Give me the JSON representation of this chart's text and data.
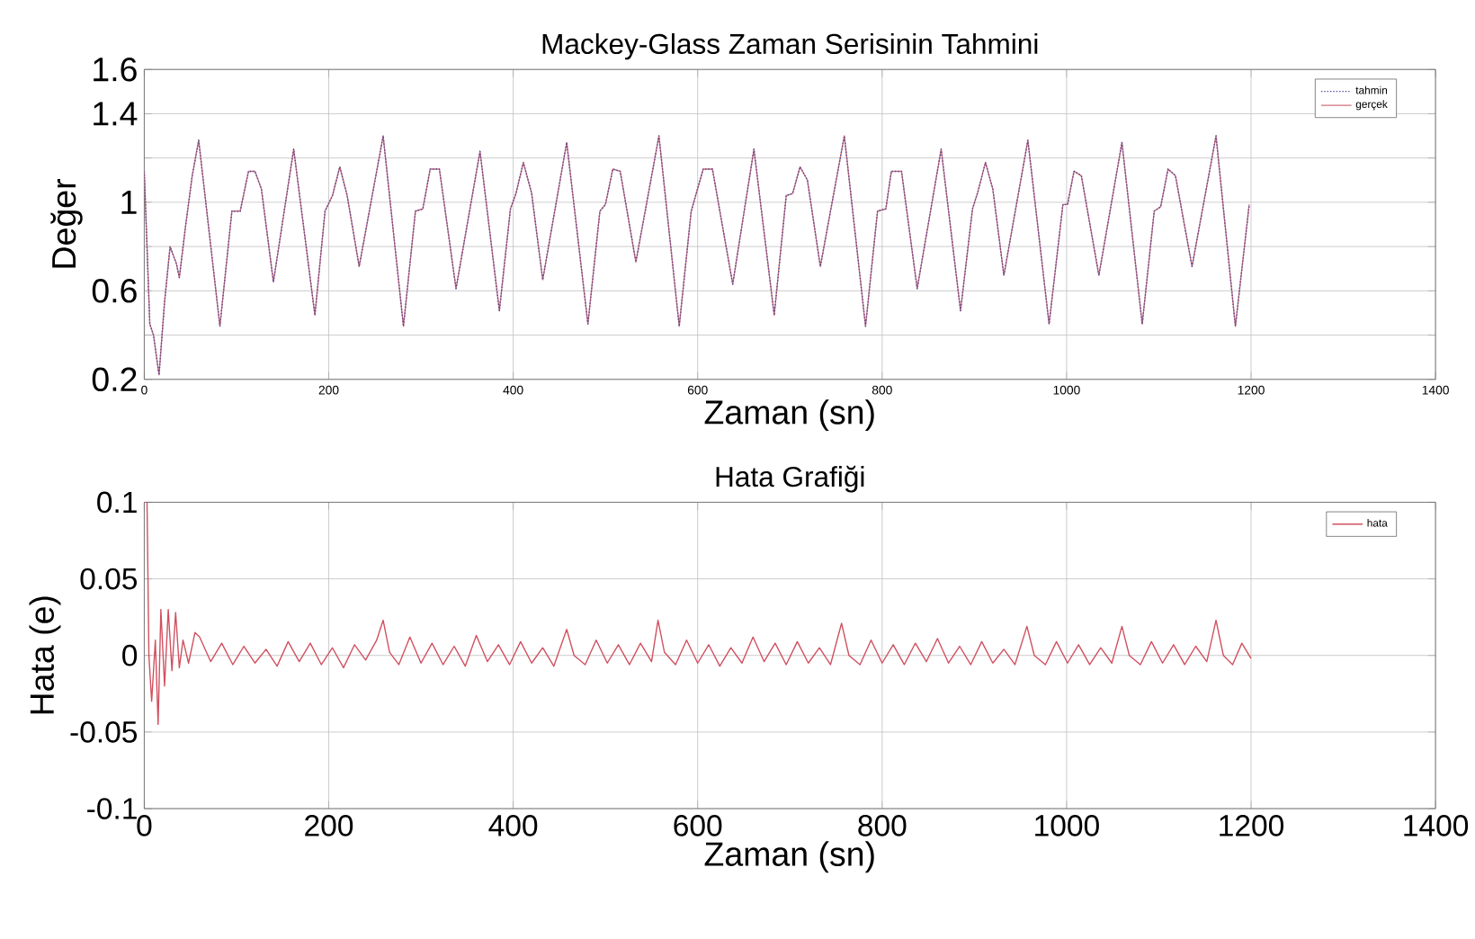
{
  "chart_data": [
    {
      "type": "line",
      "title": "Mackey-Glass Zaman Serisinin Tahmini",
      "xlabel": "Zaman (sn)",
      "ylabel": "Değer",
      "xlim": [
        0,
        1400
      ],
      "xticks": [
        0,
        200,
        400,
        600,
        800,
        1000,
        1200,
        1400
      ],
      "ylim": [
        0.2,
        1.6
      ],
      "yticks": [
        0.2,
        {
          "value": 0.4,
          "label": null
        },
        0.6,
        {
          "value": 0.8,
          "label": null
        },
        1,
        {
          "value": 1.2,
          "label": null
        },
        1.4,
        1.6
      ],
      "grid": true,
      "legend": "top right",
      "series": [
        {
          "name": "tahmin",
          "color": "#4a4a9a",
          "line_style": "dotted",
          "x": [
            0,
            6,
            10,
            16,
            22,
            28,
            35,
            38,
            45,
            52,
            59,
            82,
            95,
            104,
            113,
            120,
            127,
            140,
            162,
            185,
            196,
            204,
            212,
            220,
            233,
            259,
            281,
            294,
            302,
            310,
            320,
            338,
            364,
            385,
            397,
            403,
            411,
            420,
            432,
            458,
            481,
            494,
            500,
            508,
            516,
            533,
            558,
            580,
            593,
            606,
            616,
            638,
            661,
            683,
            696,
            703,
            711,
            719,
            733,
            759,
            782,
            795,
            804,
            810,
            821,
            838,
            864,
            885,
            898,
            904,
            912,
            920,
            932,
            958,
            981,
            996,
            1001,
            1008,
            1016,
            1035,
            1060,
            1082,
            1095,
            1102,
            1110,
            1118,
            1136,
            1162,
            1183,
            1198
          ],
          "values": [
            1.14,
            0.45,
            0.4,
            0.22,
            0.55,
            0.8,
            0.72,
            0.66,
            0.9,
            1.12,
            1.28,
            0.44,
            0.96,
            0.96,
            1.14,
            1.14,
            1.06,
            0.64,
            1.24,
            0.49,
            0.96,
            1.03,
            1.16,
            1.03,
            0.71,
            1.3,
            0.44,
            0.96,
            0.97,
            1.15,
            1.15,
            0.61,
            1.23,
            0.51,
            0.97,
            1.04,
            1.18,
            1.04,
            0.65,
            1.27,
            0.45,
            0.96,
            0.99,
            1.15,
            1.14,
            0.73,
            1.3,
            0.44,
            0.96,
            1.15,
            1.15,
            0.63,
            1.24,
            0.49,
            1.03,
            1.04,
            1.16,
            1.1,
            0.71,
            1.3,
            0.44,
            0.96,
            0.97,
            1.14,
            1.14,
            0.61,
            1.24,
            0.51,
            0.97,
            1.05,
            1.18,
            1.06,
            0.67,
            1.28,
            0.45,
            0.99,
            0.99,
            1.14,
            1.12,
            0.67,
            1.27,
            0.45,
            0.96,
            0.98,
            1.15,
            1.12,
            0.71,
            1.3,
            0.44,
            0.99
          ]
        },
        {
          "name": "gerçek",
          "color": "#d0707f",
          "line_style": "solid",
          "x": [
            0,
            6,
            10,
            16,
            22,
            28,
            35,
            38,
            45,
            52,
            59,
            82,
            95,
            104,
            113,
            120,
            127,
            140,
            162,
            185,
            196,
            204,
            212,
            220,
            233,
            259,
            281,
            294,
            302,
            310,
            320,
            338,
            364,
            385,
            397,
            403,
            411,
            420,
            432,
            458,
            481,
            494,
            500,
            508,
            516,
            533,
            558,
            580,
            593,
            606,
            616,
            638,
            661,
            683,
            696,
            703,
            711,
            719,
            733,
            759,
            782,
            795,
            804,
            810,
            821,
            838,
            864,
            885,
            898,
            904,
            912,
            920,
            932,
            958,
            981,
            996,
            1001,
            1008,
            1016,
            1035,
            1060,
            1082,
            1095,
            1102,
            1110,
            1118,
            1136,
            1162,
            1183,
            1198
          ],
          "values": [
            1.14,
            0.45,
            0.4,
            0.22,
            0.55,
            0.8,
            0.72,
            0.66,
            0.9,
            1.12,
            1.28,
            0.44,
            0.96,
            0.96,
            1.14,
            1.14,
            1.06,
            0.64,
            1.24,
            0.49,
            0.96,
            1.03,
            1.16,
            1.03,
            0.71,
            1.3,
            0.44,
            0.96,
            0.97,
            1.15,
            1.15,
            0.61,
            1.23,
            0.51,
            0.97,
            1.04,
            1.18,
            1.04,
            0.65,
            1.27,
            0.45,
            0.96,
            0.99,
            1.15,
            1.14,
            0.73,
            1.3,
            0.44,
            0.96,
            1.15,
            1.15,
            0.63,
            1.24,
            0.49,
            1.03,
            1.04,
            1.16,
            1.1,
            0.71,
            1.3,
            0.44,
            0.96,
            0.97,
            1.14,
            1.14,
            0.61,
            1.24,
            0.51,
            0.97,
            1.05,
            1.18,
            1.06,
            0.67,
            1.28,
            0.45,
            0.99,
            0.99,
            1.14,
            1.12,
            0.67,
            1.27,
            0.45,
            0.96,
            0.98,
            1.15,
            1.12,
            0.71,
            1.3,
            0.44,
            0.99
          ]
        }
      ]
    },
    {
      "type": "line",
      "title": "Hata Grafiği",
      "xlabel": "Zaman (sn)",
      "ylabel": "Hata (e)",
      "xlim": [
        0,
        1400
      ],
      "xticks": [
        0,
        200,
        400,
        600,
        800,
        1000,
        1200,
        1400
      ],
      "ylim": [
        -0.1,
        0.1
      ],
      "yticks": [
        -0.1,
        -0.05,
        0,
        0.05,
        0.1
      ],
      "grid": true,
      "legend": "top right",
      "series": [
        {
          "name": "hata",
          "color": "#d05060",
          "line_style": "solid",
          "x": [
            0,
            3,
            5,
            8,
            12,
            15,
            18,
            22,
            26,
            30,
            34,
            38,
            42,
            48,
            55,
            60,
            72,
            84,
            96,
            108,
            120,
            132,
            144,
            156,
            168,
            180,
            192,
            204,
            216,
            228,
            240,
            252,
            259,
            266,
            276,
            288,
            300,
            312,
            324,
            336,
            348,
            360,
            372,
            384,
            396,
            408,
            420,
            432,
            444,
            458,
            466,
            478,
            490,
            502,
            514,
            526,
            538,
            550,
            557,
            564,
            576,
            588,
            600,
            612,
            624,
            636,
            648,
            660,
            672,
            684,
            696,
            708,
            720,
            732,
            744,
            756,
            764,
            776,
            788,
            800,
            812,
            824,
            836,
            848,
            860,
            872,
            884,
            896,
            908,
            920,
            932,
            944,
            957,
            965,
            977,
            989,
            1001,
            1013,
            1025,
            1037,
            1049,
            1060,
            1068,
            1080,
            1092,
            1104,
            1116,
            1128,
            1140,
            1152,
            1162,
            1170,
            1180,
            1190,
            1200
          ],
          "values": [
            0.1,
            0.1,
            0.0,
            -0.03,
            0.01,
            -0.045,
            0.03,
            -0.02,
            0.03,
            -0.01,
            0.028,
            -0.008,
            0.01,
            -0.005,
            0.015,
            0.012,
            -0.004,
            0.008,
            -0.006,
            0.006,
            -0.005,
            0.004,
            -0.007,
            0.009,
            -0.004,
            0.008,
            -0.006,
            0.005,
            -0.008,
            0.007,
            -0.003,
            0.01,
            0.023,
            0.002,
            -0.006,
            0.012,
            -0.005,
            0.008,
            -0.006,
            0.006,
            -0.007,
            0.013,
            -0.004,
            0.007,
            -0.006,
            0.009,
            -0.005,
            0.005,
            -0.007,
            0.017,
            0.0,
            -0.006,
            0.01,
            -0.005,
            0.007,
            -0.006,
            0.008,
            -0.004,
            0.023,
            0.002,
            -0.006,
            0.01,
            -0.005,
            0.007,
            -0.007,
            0.005,
            -0.005,
            0.012,
            -0.004,
            0.008,
            -0.006,
            0.009,
            -0.005,
            0.005,
            -0.006,
            0.021,
            0.0,
            -0.006,
            0.01,
            -0.005,
            0.007,
            -0.006,
            0.008,
            -0.004,
            0.011,
            -0.005,
            0.006,
            -0.006,
            0.009,
            -0.005,
            0.004,
            -0.006,
            0.019,
            0.0,
            -0.006,
            0.009,
            -0.005,
            0.007,
            -0.006,
            0.005,
            -0.005,
            0.019,
            0.0,
            -0.006,
            0.009,
            -0.005,
            0.007,
            -0.006,
            0.006,
            -0.004,
            0.023,
            0.0,
            -0.006,
            0.008,
            -0.002
          ]
        }
      ]
    }
  ]
}
